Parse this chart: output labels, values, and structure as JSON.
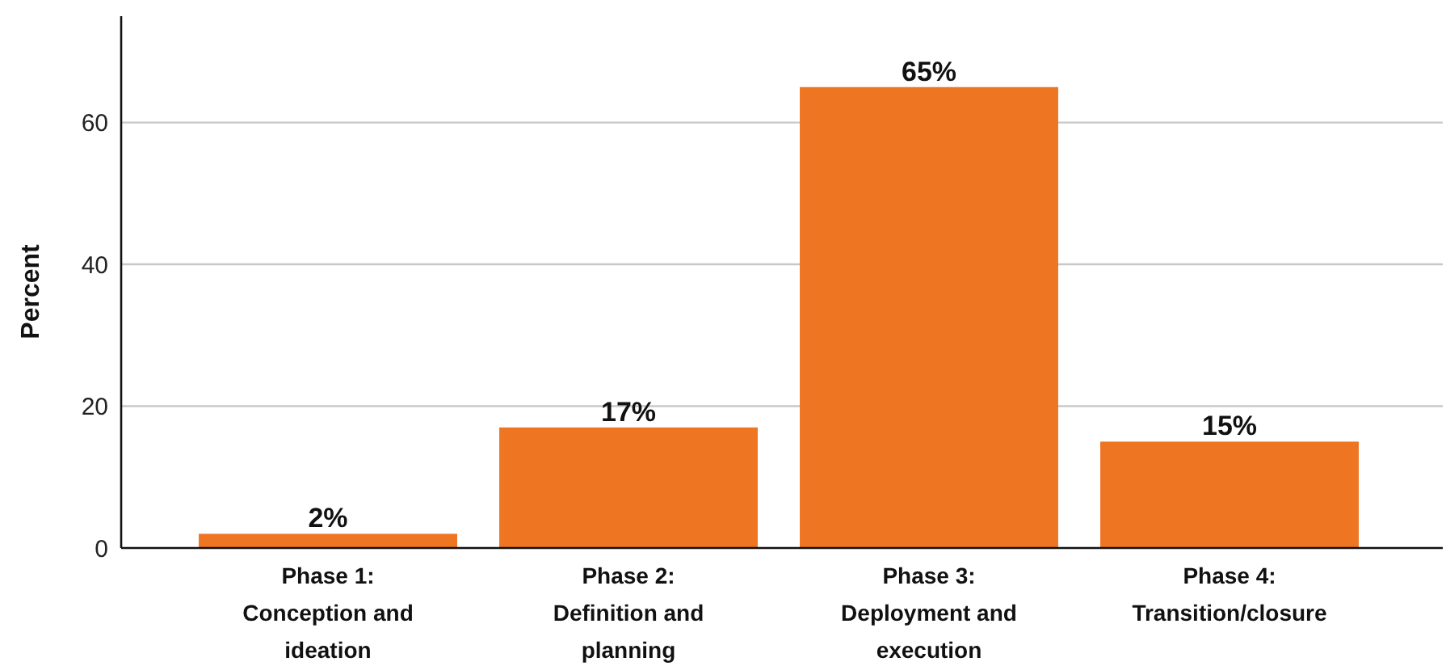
{
  "chart_data": {
    "type": "bar",
    "ylabel": "Percent",
    "categories": [
      "Phase 1: Conception and ideation",
      "Phase 2: Definition and planning",
      "Phase 3: Deployment and execution",
      "Phase 4: Transition/closure"
    ],
    "values": [
      2,
      17,
      65,
      15
    ],
    "value_labels": [
      "2%",
      "17%",
      "65%",
      "15%"
    ],
    "color": "#ee7623",
    "ylim": [
      0,
      75
    ],
    "yticks": [
      0,
      20,
      40,
      60
    ],
    "grid": "y"
  }
}
